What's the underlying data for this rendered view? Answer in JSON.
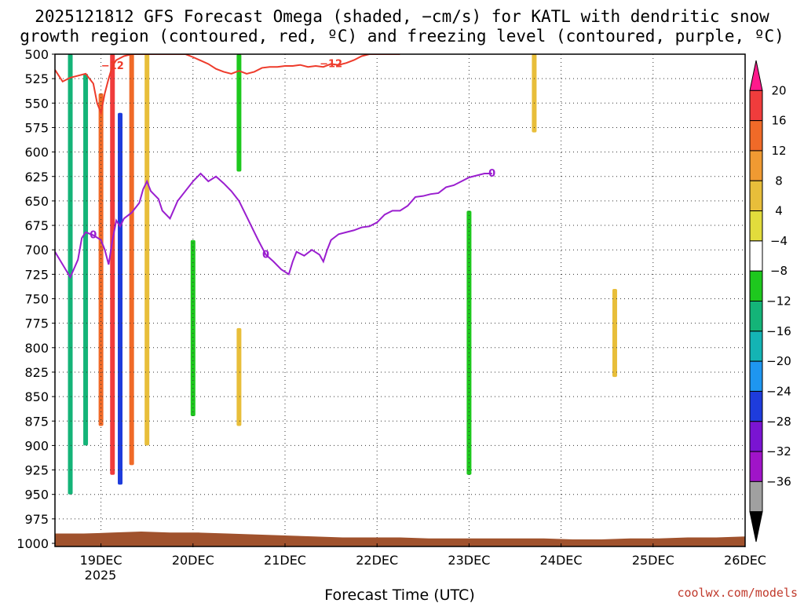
{
  "chart_data": {
    "type": "heatmap",
    "title_line1": "2025121812 GFS Forecast Omega (shaded, −cm/s) for KATL with dendritic snow",
    "title_line2": "growth region (contoured, red, ºC) and freezing level (contoured, purple, ºC)",
    "xlabel": "Forecast Time (UTC)",
    "ylabel": "",
    "credit": "coolwx.com/models",
    "y_axis": {
      "min": 500,
      "max": 1000,
      "ticks": [
        "500",
        "525",
        "550",
        "575",
        "600",
        "625",
        "650",
        "675",
        "700",
        "725",
        "750",
        "775",
        "800",
        "825",
        "850",
        "875",
        "900",
        "925",
        "950",
        "975",
        "1000"
      ]
    },
    "x_axis": {
      "start_hour": 0,
      "end_hour": 180,
      "ticks": [
        {
          "label": "19DEC",
          "hour": 12
        },
        {
          "label": "20DEC",
          "hour": 36
        },
        {
          "label": "21DEC",
          "hour": 60
        },
        {
          "label": "22DEC",
          "hour": 84
        },
        {
          "label": "23DEC",
          "hour": 108
        },
        {
          "label": "24DEC",
          "hour": 132
        },
        {
          "label": "25DEC",
          "hour": 156
        },
        {
          "label": "26DEC",
          "hour": 180
        }
      ],
      "sublabel": "2025"
    },
    "colorbar": {
      "labels": [
        "20",
        "16",
        "12",
        "8",
        "4",
        "−4",
        "−8",
        "−12",
        "−16",
        "−20",
        "−24",
        "−28",
        "−32",
        "−36"
      ],
      "colors": [
        "#ff1a8c",
        "#f03c3c",
        "#f06a28",
        "#f09a32",
        "#e8be3a",
        "#e2dc3c",
        "#ffffff",
        "#1ec81e",
        "#14b478",
        "#14b4b4",
        "#1e96f0",
        "#1e3cdc",
        "#7a14d2",
        "#a014c8",
        "#a0a0a0",
        "#000000"
      ]
    },
    "freezing_level_0C": {
      "label": "0",
      "points": [
        [
          0,
          702
        ],
        [
          2,
          715
        ],
        [
          4,
          728
        ],
        [
          6,
          710
        ],
        [
          7,
          688
        ],
        [
          8,
          682
        ],
        [
          10,
          685
        ],
        [
          12,
          690
        ],
        [
          13,
          700
        ],
        [
          14,
          715
        ],
        [
          15,
          690
        ],
        [
          16,
          670
        ],
        [
          17,
          676
        ],
        [
          18,
          668
        ],
        [
          20,
          662
        ],
        [
          22,
          652
        ],
        [
          23,
          638
        ],
        [
          24,
          630
        ],
        [
          25,
          640
        ],
        [
          27,
          648
        ],
        [
          28,
          660
        ],
        [
          30,
          668
        ],
        [
          32,
          650
        ],
        [
          34,
          640
        ],
        [
          36,
          630
        ],
        [
          38,
          622
        ],
        [
          40,
          630
        ],
        [
          42,
          625
        ],
        [
          44,
          632
        ],
        [
          46,
          640
        ],
        [
          48,
          650
        ],
        [
          50,
          666
        ],
        [
          52,
          682
        ],
        [
          53,
          690
        ],
        [
          55,
          705
        ],
        [
          57,
          712
        ],
        [
          59,
          720
        ],
        [
          61,
          725
        ],
        [
          62,
          712
        ],
        [
          63,
          702
        ],
        [
          65,
          706
        ],
        [
          67,
          700
        ],
        [
          69,
          705
        ],
        [
          70,
          712
        ],
        [
          71,
          700
        ],
        [
          72,
          690
        ],
        [
          74,
          684
        ],
        [
          76,
          682
        ],
        [
          78,
          680
        ],
        [
          80,
          677
        ],
        [
          82,
          676
        ],
        [
          84,
          672
        ],
        [
          86,
          664
        ],
        [
          88,
          660
        ],
        [
          90,
          660
        ],
        [
          92,
          655
        ],
        [
          94,
          646
        ],
        [
          96,
          645
        ],
        [
          98,
          643
        ],
        [
          100,
          642
        ],
        [
          102,
          636
        ],
        [
          104,
          634
        ],
        [
          106,
          630
        ],
        [
          108,
          626
        ],
        [
          110,
          624
        ],
        [
          112,
          622
        ],
        [
          114,
          622
        ]
      ]
    },
    "dgz_minus12C": {
      "label": "−12",
      "points": [
        [
          0,
          516
        ],
        [
          2,
          528
        ],
        [
          4,
          524
        ],
        [
          6,
          522
        ],
        [
          8,
          520
        ],
        [
          10,
          530
        ],
        [
          11,
          550
        ],
        [
          12,
          560
        ],
        [
          13,
          540
        ],
        [
          14,
          525
        ],
        [
          15,
          512
        ],
        [
          16,
          506
        ],
        [
          18,
          502
        ],
        [
          20,
          500
        ],
        [
          34,
          500
        ],
        [
          36,
          503
        ],
        [
          40,
          510
        ],
        [
          42,
          515
        ],
        [
          44,
          518
        ],
        [
          46,
          520
        ],
        [
          48,
          517
        ],
        [
          50,
          520
        ],
        [
          52,
          518
        ],
        [
          54,
          514
        ],
        [
          56,
          513
        ],
        [
          58,
          513
        ],
        [
          60,
          512
        ],
        [
          62,
          512
        ],
        [
          64,
          511
        ],
        [
          66,
          513
        ],
        [
          68,
          512
        ],
        [
          70,
          513
        ],
        [
          72,
          510
        ],
        [
          74,
          511
        ],
        [
          76,
          509
        ],
        [
          78,
          506
        ],
        [
          80,
          502
        ],
        [
          82,
          500
        ],
        [
          90,
          500
        ]
      ]
    },
    "surface_pressure": {
      "values_hpa": [
        990,
        990,
        989,
        988,
        989,
        989,
        990,
        991,
        992,
        993,
        994,
        994,
        994,
        995,
        995,
        995,
        995,
        995,
        996,
        996,
        995,
        995,
        994,
        994,
        993
      ]
    },
    "omega_cells": [
      {
        "hour": 4,
        "p_top": 500,
        "p_bot": 950,
        "omega": -8
      },
      {
        "hour": 8,
        "p_top": 520,
        "p_bot": 900,
        "omega": -10
      },
      {
        "hour": 12,
        "p_top": 540,
        "p_bot": 880,
        "omega": 14
      },
      {
        "hour": 15,
        "p_top": 500,
        "p_bot": 930,
        "omega": 16
      },
      {
        "hour": 17,
        "p_top": 560,
        "p_bot": 940,
        "omega": -20
      },
      {
        "hour": 20,
        "p_top": 500,
        "p_bot": 920,
        "omega": 12
      },
      {
        "hour": 24,
        "p_top": 500,
        "p_bot": 900,
        "omega": 6
      },
      {
        "hour": 36,
        "p_top": 690,
        "p_bot": 870,
        "omega": -6
      },
      {
        "hour": 48,
        "p_top": 500,
        "p_bot": 620,
        "omega": -6
      },
      {
        "hour": 48,
        "p_top": 780,
        "p_bot": 880,
        "omega": 6
      },
      {
        "hour": 108,
        "p_top": 660,
        "p_bot": 930,
        "omega": -6
      },
      {
        "hour": 125,
        "p_top": 500,
        "p_bot": 580,
        "omega": 6
      },
      {
        "hour": 146,
        "p_top": 740,
        "p_bot": 830,
        "omega": 6
      }
    ]
  }
}
